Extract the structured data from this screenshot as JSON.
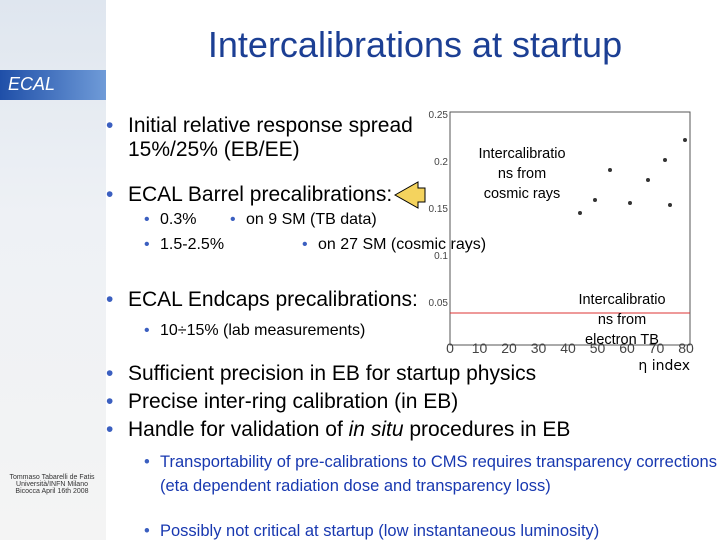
{
  "header": {
    "title": "Intercalibrations at startup",
    "logo": "ECAL"
  },
  "bullets": [
    {
      "text": "Initial relative response spread 15%/25% (EB/EE)"
    },
    {
      "text": "ECAL Barrel precalibrations:",
      "sub": [
        [
          "0.3%",
          "on 9 SM (TB data)"
        ],
        [
          "1.5-2.5%",
          "on 27 SM (cosmic rays)"
        ]
      ]
    },
    {
      "text": "ECAL Endcaps precalibrations:",
      "sub": [
        [
          "10÷15% (lab measurements)"
        ]
      ]
    },
    {
      "text": "Sufficient precision in EB for startup physics"
    },
    {
      "text": "Precise inter-ring calibration (in EB)"
    },
    {
      "runs": [
        "Handle for validation of ",
        "in situ",
        " procedures in EB"
      ],
      "sub": [
        "Transportability of pre-calibrations to CMS requires transparency corrections (eta dependent radiation dose and transparency loss)",
        "Possibly not critical at startup (low instantaneous luminosity)"
      ]
    }
  ],
  "plot": {
    "yticks": [
      "0.25",
      "0.2",
      "0.15",
      "0.1",
      "0.05"
    ],
    "xticks": [
      "0",
      "10",
      "20",
      "30",
      "40",
      "50",
      "60",
      "70",
      "80"
    ],
    "xlabel": "η index",
    "callouts": [
      [
        "Intercalibratio",
        "ns from",
        "cosmic rays"
      ],
      [
        "Intercalibratio",
        "ns from",
        "electron TB"
      ]
    ]
  },
  "footer": "Tommaso Tabarelli de Fatis Università/INFN Milano Bicocca April 16th 2008"
}
